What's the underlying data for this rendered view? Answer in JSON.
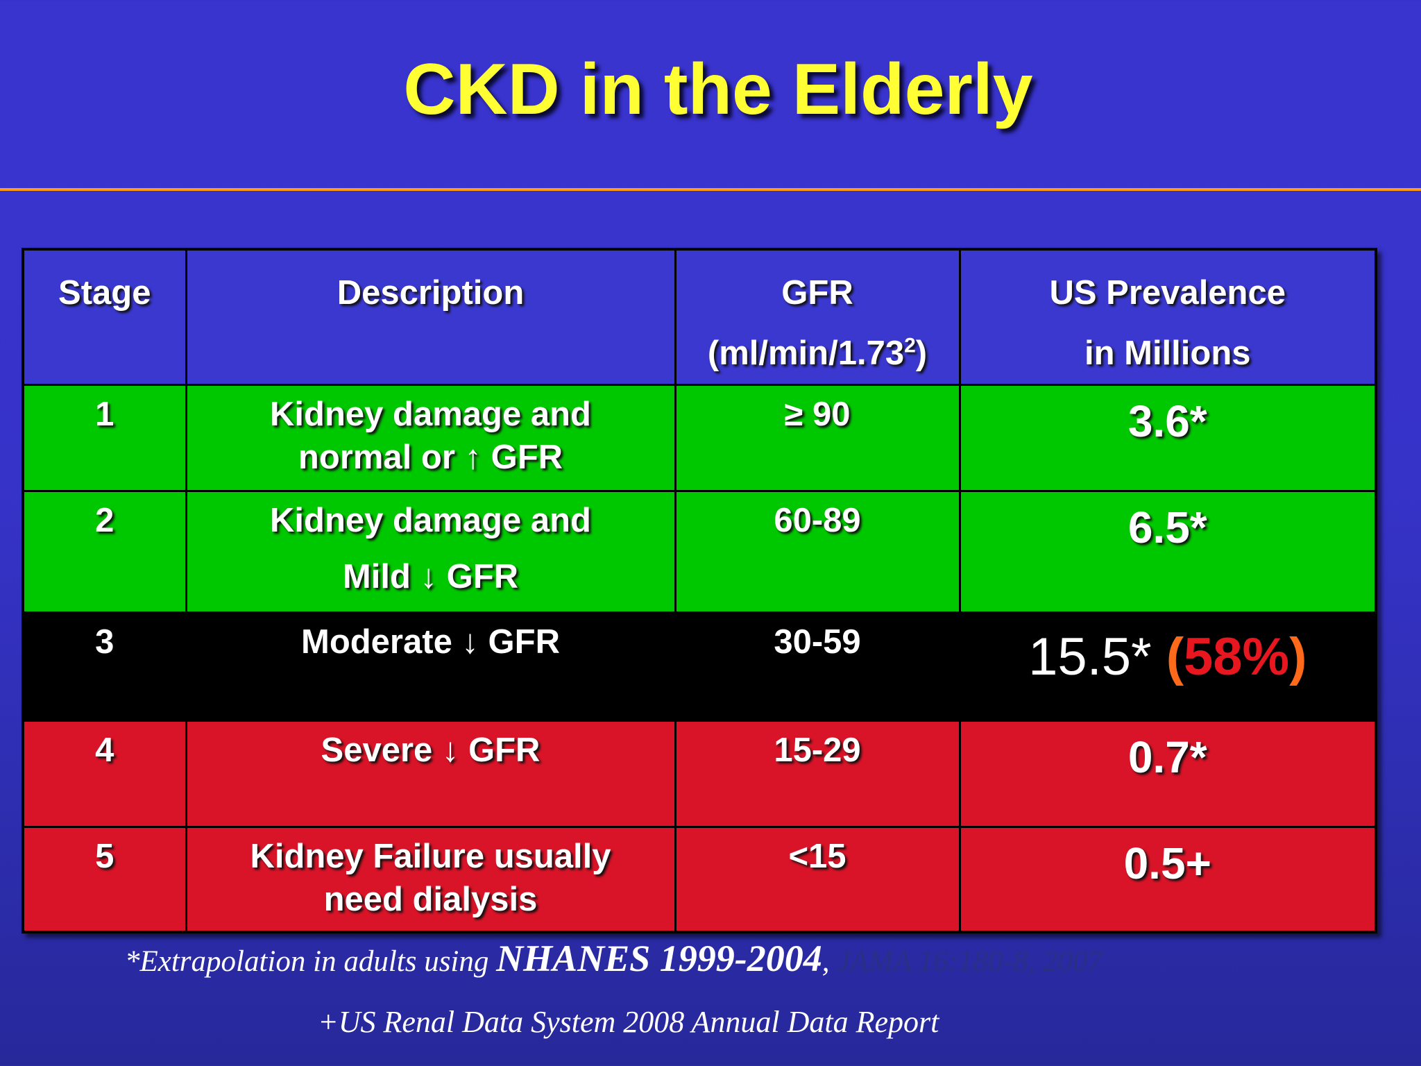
{
  "slide": {
    "title": "CKD in the Elderly",
    "colors": {
      "background": "#3633c9",
      "title": "#ffff33",
      "rule": "#ff9a1a",
      "header_row": "#3a38cf",
      "stage_1_2": "#00c800",
      "stage_3": "#000000",
      "stage_4_5": "#d91428",
      "highlight_paren": "#ff6a1a",
      "highlight_percent": "#e8161e",
      "citation_journal": "#2b2e86"
    }
  },
  "table": {
    "headers": {
      "stage": "Stage",
      "description": "Description",
      "gfr_line1": "GFR",
      "gfr_line2_pre": "(ml/min/1.73",
      "gfr_line2_sup": "2",
      "gfr_line2_post": ")",
      "prevalence_line1": "US Prevalence",
      "prevalence_line2": "in Millions"
    },
    "rows": [
      {
        "stage": "1",
        "desc_line1": "Kidney damage and",
        "desc_line2": "normal or ↑ GFR",
        "gfr": "≥ 90",
        "prevalence": "3.6*"
      },
      {
        "stage": "2",
        "desc_line1": "Kidney damage and",
        "desc_line2": "Mild ↓ GFR",
        "gfr": "60-89",
        "prevalence": "6.5*"
      },
      {
        "stage": "3",
        "desc_line1": "Moderate ↓ GFR",
        "gfr": "30-59",
        "prevalence": "15.5*",
        "paren_open": "(",
        "percent": "58%",
        "paren_close": ")"
      },
      {
        "stage": "4",
        "desc_line1": "Severe ↓ GFR",
        "gfr": "15-29",
        "prevalence": "0.7*"
      },
      {
        "stage": "5",
        "desc_line1": "Kidney Failure usually",
        "desc_line2": "need dialysis",
        "gfr": "<15",
        "prevalence": "0.5+"
      }
    ]
  },
  "footnotes": {
    "line1_pre": "*Extrapolation in adults using ",
    "line1_bold": "NHANES 1999-2004",
    "line1_sep": ", ",
    "line1_journal": "JAMA 16:180-8, 2007",
    "line2": "+US Renal Data System 2008 Annual Data Report"
  }
}
